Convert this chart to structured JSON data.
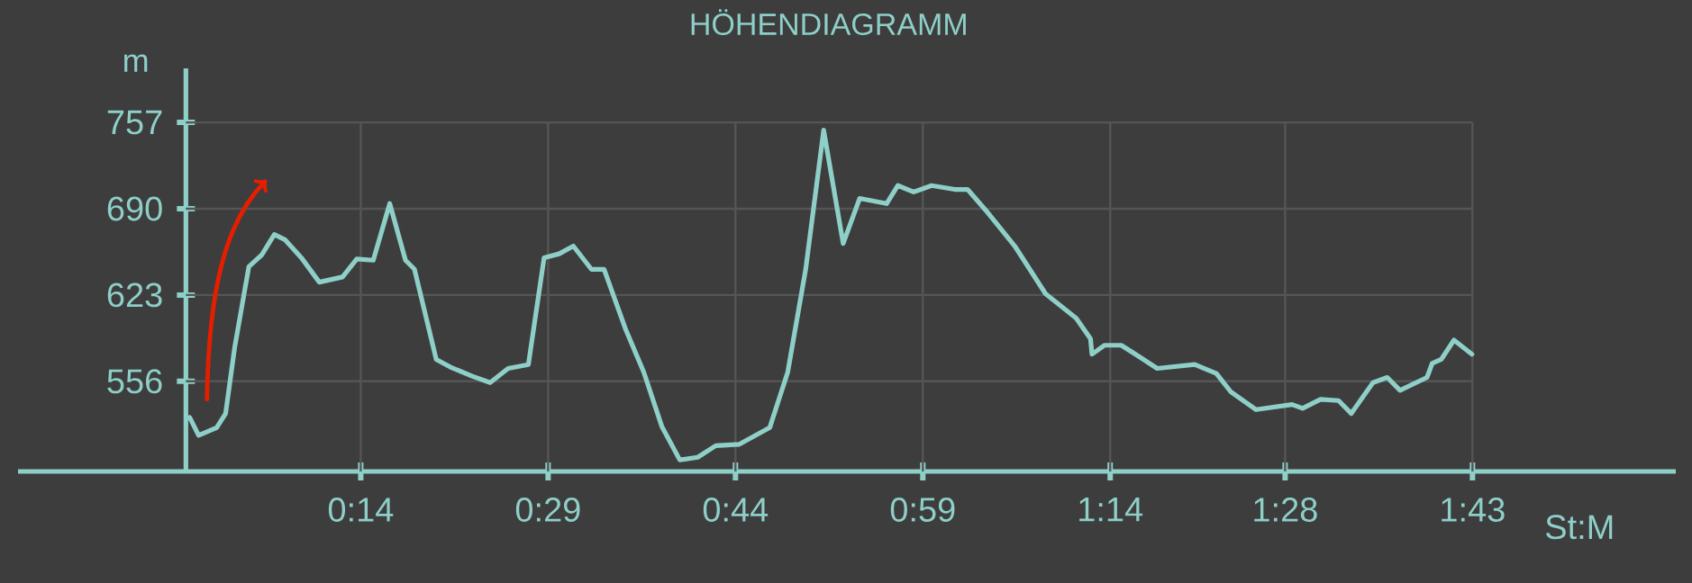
{
  "chart_data": {
    "type": "line",
    "title": "HÖHENDIAGRAMM",
    "xlabel": "St:M",
    "ylabel": "m",
    "x": [
      0.005,
      0.017,
      0.041,
      0.053,
      0.065,
      0.084,
      0.101,
      0.118,
      0.132,
      0.154,
      0.178,
      0.209,
      0.228,
      0.25,
      0.272,
      0.293,
      0.305,
      0.334,
      0.353,
      0.382,
      0.406,
      0.43,
      0.457,
      0.478,
      0.498,
      0.517,
      0.541,
      0.558,
      0.587,
      0.611,
      0.635,
      0.659,
      0.683,
      0.707,
      0.738,
      0.779,
      0.803,
      0.827,
      0.851,
      0.877,
      0.899,
      0.935,
      0.95,
      0.971,
      0.995,
      1.026,
      1.043,
      1.067,
      1.106,
      1.147,
      1.188,
      1.207,
      1.209,
      1.226,
      1.248,
      1.267,
      1.296,
      1.346,
      1.375,
      1.394,
      1.428,
      1.476,
      1.49,
      1.514,
      1.538,
      1.555,
      1.584,
      1.603,
      1.62,
      1.656,
      1.663,
      1.675,
      1.692,
      1.716
    ],
    "series": [
      {
        "color": "#8ecfc8",
        "values": [
          528,
          514,
          520,
          531,
          582,
          645,
          654,
          670,
          666,
          652,
          633,
          637,
          651,
          650,
          694,
          650,
          643,
          573,
          567,
          560,
          555,
          566,
          569,
          652,
          655,
          661,
          643,
          643,
          596,
          563,
          521,
          495,
          497,
          506,
          507,
          520,
          563,
          643,
          751,
          663,
          698,
          694,
          708,
          703,
          708,
          705,
          705,
          689,
          661,
          624,
          605,
          589,
          577,
          584,
          584,
          577,
          566,
          569,
          562,
          548,
          534,
          538,
          535,
          542,
          541,
          531,
          555,
          559,
          549,
          559,
          570,
          573,
          588,
          577
        ]
      }
    ],
    "xlim": [
      -0.224,
      1.988
    ],
    "ylim": [
      486,
      799
    ],
    "xticks": [
      {
        "value": 0.2333,
        "label": "0:14"
      },
      {
        "value": 0.4833,
        "label": "0:29"
      },
      {
        "value": 0.7333,
        "label": "0:44"
      },
      {
        "value": 0.9833,
        "label": "0:59"
      },
      {
        "value": 1.2333,
        "label": "1:14"
      },
      {
        "value": 1.4667,
        "label": "1:28"
      },
      {
        "value": 1.7167,
        "label": "1:43"
      }
    ],
    "yticks": [
      556,
      623,
      690,
      757
    ],
    "grid": true,
    "line_style": "solid"
  }
}
